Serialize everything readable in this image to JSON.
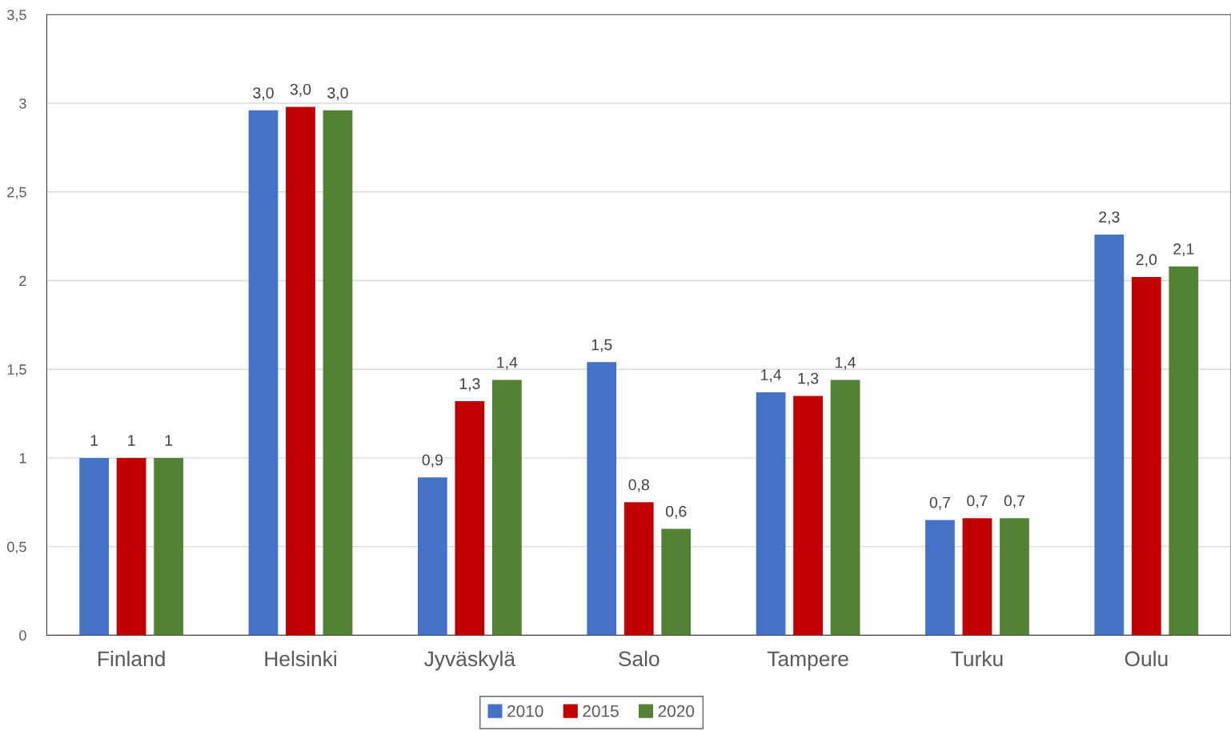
{
  "chart_data": {
    "type": "bar",
    "categories": [
      "Finland",
      "Helsinki",
      "Jyväskylä",
      "Salo",
      "Tampere",
      "Turku",
      "Oulu"
    ],
    "series": [
      {
        "name": "2010",
        "color": "#4472c4",
        "values": [
          1,
          2.96,
          0.89,
          1.54,
          1.37,
          0.65,
          2.26
        ],
        "value_labels": [
          "1",
          "3,0",
          "0,9",
          "1,5",
          "1,4",
          "0,7",
          "2,3"
        ]
      },
      {
        "name": "2015",
        "color": "#c00000",
        "values": [
          1,
          2.98,
          1.32,
          0.75,
          1.35,
          0.66,
          2.02
        ],
        "value_labels": [
          "1",
          "3,0",
          "1,3",
          "0,8",
          "1,3",
          "0,7",
          "2,0"
        ]
      },
      {
        "name": "2020",
        "color": "#548235",
        "values": [
          1,
          2.96,
          1.44,
          0.6,
          1.44,
          0.66,
          2.08
        ],
        "value_labels": [
          "1",
          "3,0",
          "1,4",
          "0,6",
          "1,4",
          "0,7",
          "2,1"
        ]
      }
    ],
    "ylim": [
      0,
      3.5
    ],
    "yticks": [
      0,
      {
        "value": 0.5,
        "label": "0,5"
      },
      1,
      {
        "value": 1.5,
        "label": "1,5"
      },
      2,
      {
        "value": 2.5,
        "label": "2,5"
      },
      3,
      {
        "value": 3.5,
        "label": "3,5"
      }
    ],
    "grid": "y",
    "legend": "bottom"
  }
}
